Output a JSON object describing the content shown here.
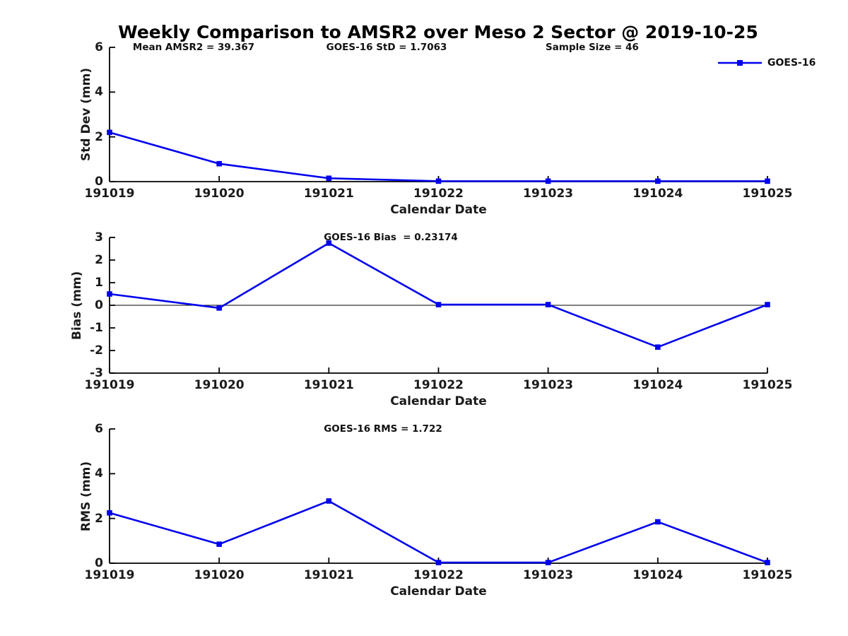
{
  "figure": {
    "title": "Weekly Comparison to AMSR2 over Meso 2 Sector @ 2019-10-25",
    "background_color": "#ffffff",
    "accent_color": "#0000ee",
    "axis_color": "#000000"
  },
  "legend": {
    "label": "GOES-16",
    "position": "top-right",
    "line_color": "#0000ee",
    "marker": "filled-square"
  },
  "annotations": {
    "mean_amsr2": "Mean AMSR2 = 39.367",
    "goes16_std": "GOES-16 StD = 1.7063",
    "sample_size": "Sample Size = 46",
    "goes16_bias": "GOES-16 Bias  = 0.23174",
    "goes16_rms": "GOES-16 RMS = 1.722"
  },
  "chart_data": [
    {
      "type": "line",
      "series_name": "GOES-16",
      "categories": [
        "191019",
        "191020",
        "191021",
        "191022",
        "191023",
        "191024",
        "191025"
      ],
      "values": [
        2.2,
        0.8,
        0.15,
        0.02,
        0.02,
        0.02,
        0.02
      ],
      "xlabel": "Calendar Date",
      "ylabel": "Std Dev (mm)",
      "ylim": [
        0,
        6
      ],
      "yticks": [
        0,
        2,
        4,
        6
      ],
      "grid": false,
      "zero_line": false,
      "line_color": "#0000ee",
      "marker": "square"
    },
    {
      "type": "line",
      "series_name": "GOES-16",
      "categories": [
        "191019",
        "191020",
        "191021",
        "191022",
        "191023",
        "191024",
        "191025"
      ],
      "values": [
        0.5,
        -0.12,
        2.75,
        0.03,
        0.03,
        -1.85,
        0.03
      ],
      "xlabel": "Calendar Date",
      "ylabel": "Bias (mm)",
      "ylim": [
        -3,
        3
      ],
      "yticks": [
        -3,
        -2,
        -1,
        0,
        1,
        2,
        3
      ],
      "grid": false,
      "zero_line": true,
      "line_color": "#0000ee",
      "marker": "square"
    },
    {
      "type": "line",
      "series_name": "GOES-16",
      "categories": [
        "191019",
        "191020",
        "191021",
        "191022",
        "191023",
        "191024",
        "191025"
      ],
      "values": [
        2.25,
        0.85,
        2.78,
        0.03,
        0.03,
        1.85,
        0.03
      ],
      "xlabel": "Calendar Date",
      "ylabel": "RMS (mm)",
      "ylim": [
        0,
        6
      ],
      "yticks": [
        0,
        2,
        4,
        6
      ],
      "grid": false,
      "zero_line": false,
      "line_color": "#0000ee",
      "marker": "square"
    }
  ]
}
